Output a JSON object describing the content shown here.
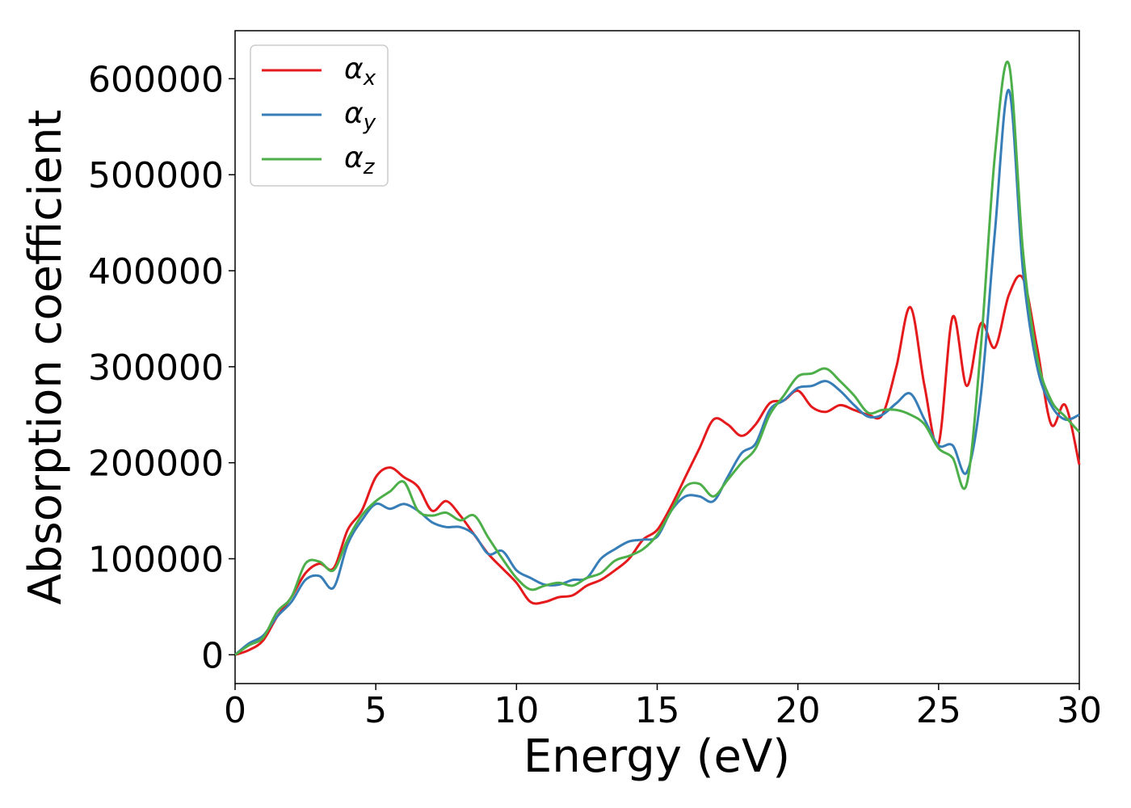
{
  "chart_data": {
    "type": "line",
    "xlabel": "Energy (eV)",
    "ylabel": "Absorption coefficient",
    "xlim": [
      0,
      30
    ],
    "ylim": [
      -30000,
      650000
    ],
    "xticks": [
      0,
      5,
      10,
      15,
      20,
      25,
      30
    ],
    "yticks": [
      0,
      100000,
      200000,
      300000,
      400000,
      500000,
      600000
    ],
    "grid": false,
    "legend_position": "upper-left",
    "x": [
      0,
      0.5,
      1,
      1.5,
      2,
      2.5,
      3,
      3.5,
      4,
      4.5,
      5,
      5.5,
      6,
      6.5,
      7,
      7.5,
      8,
      8.5,
      9,
      9.5,
      10,
      10.5,
      11,
      11.5,
      12,
      12.5,
      13,
      13.5,
      14,
      14.5,
      15,
      15.5,
      16,
      16.5,
      17,
      17.5,
      18,
      18.5,
      19,
      19.5,
      20,
      20.5,
      21,
      21.5,
      22,
      22.5,
      23,
      23.5,
      24,
      24.5,
      25,
      25.5,
      26,
      26.5,
      27,
      27.5,
      28,
      28.5,
      29,
      29.5,
      30
    ],
    "series": [
      {
        "name": "α",
        "subscript": "x",
        "color": "#e41a1c",
        "values": [
          0,
          5000,
          15000,
          40000,
          60000,
          85000,
          95000,
          90000,
          130000,
          150000,
          185000,
          195000,
          185000,
          175000,
          150000,
          160000,
          145000,
          125000,
          105000,
          90000,
          75000,
          55000,
          55000,
          60000,
          62000,
          72000,
          78000,
          88000,
          100000,
          120000,
          130000,
          155000,
          185000,
          215000,
          245000,
          240000,
          228000,
          240000,
          262000,
          265000,
          275000,
          258000,
          253000,
          260000,
          255000,
          250000,
          250000,
          300000,
          362000,
          280000,
          220000,
          352000,
          280000,
          345000,
          320000,
          375000,
          392000,
          320000,
          240000,
          260000,
          198000
        ]
      },
      {
        "name": "α",
        "subscript": "y",
        "color": "#377eb8",
        "values": [
          0,
          12000,
          20000,
          40000,
          55000,
          78000,
          82000,
          70000,
          115000,
          140000,
          157000,
          152000,
          157000,
          150000,
          138000,
          133000,
          133000,
          125000,
          105000,
          108000,
          88000,
          80000,
          73000,
          73000,
          78000,
          80000,
          100000,
          110000,
          118000,
          120000,
          123000,
          150000,
          165000,
          165000,
          160000,
          185000,
          210000,
          220000,
          255000,
          265000,
          278000,
          280000,
          285000,
          275000,
          260000,
          248000,
          250000,
          262000,
          272000,
          245000,
          218000,
          218000,
          190000,
          270000,
          440000,
          588000,
          400000,
          300000,
          260000,
          245000,
          250000
        ]
      },
      {
        "name": "α",
        "subscript": "z",
        "color": "#4daf4a",
        "values": [
          0,
          10000,
          18000,
          45000,
          60000,
          95000,
          97000,
          88000,
          120000,
          145000,
          160000,
          170000,
          180000,
          150000,
          145000,
          148000,
          140000,
          145000,
          122000,
          100000,
          80000,
          68000,
          72000,
          75000,
          72000,
          80000,
          85000,
          98000,
          103000,
          110000,
          125000,
          150000,
          175000,
          178000,
          165000,
          182000,
          200000,
          215000,
          250000,
          270000,
          290000,
          293000,
          298000,
          285000,
          270000,
          252000,
          255000,
          255000,
          250000,
          240000,
          215000,
          205000,
          178000,
          320000,
          520000,
          615000,
          420000,
          310000,
          265000,
          248000,
          232000
        ]
      }
    ]
  }
}
